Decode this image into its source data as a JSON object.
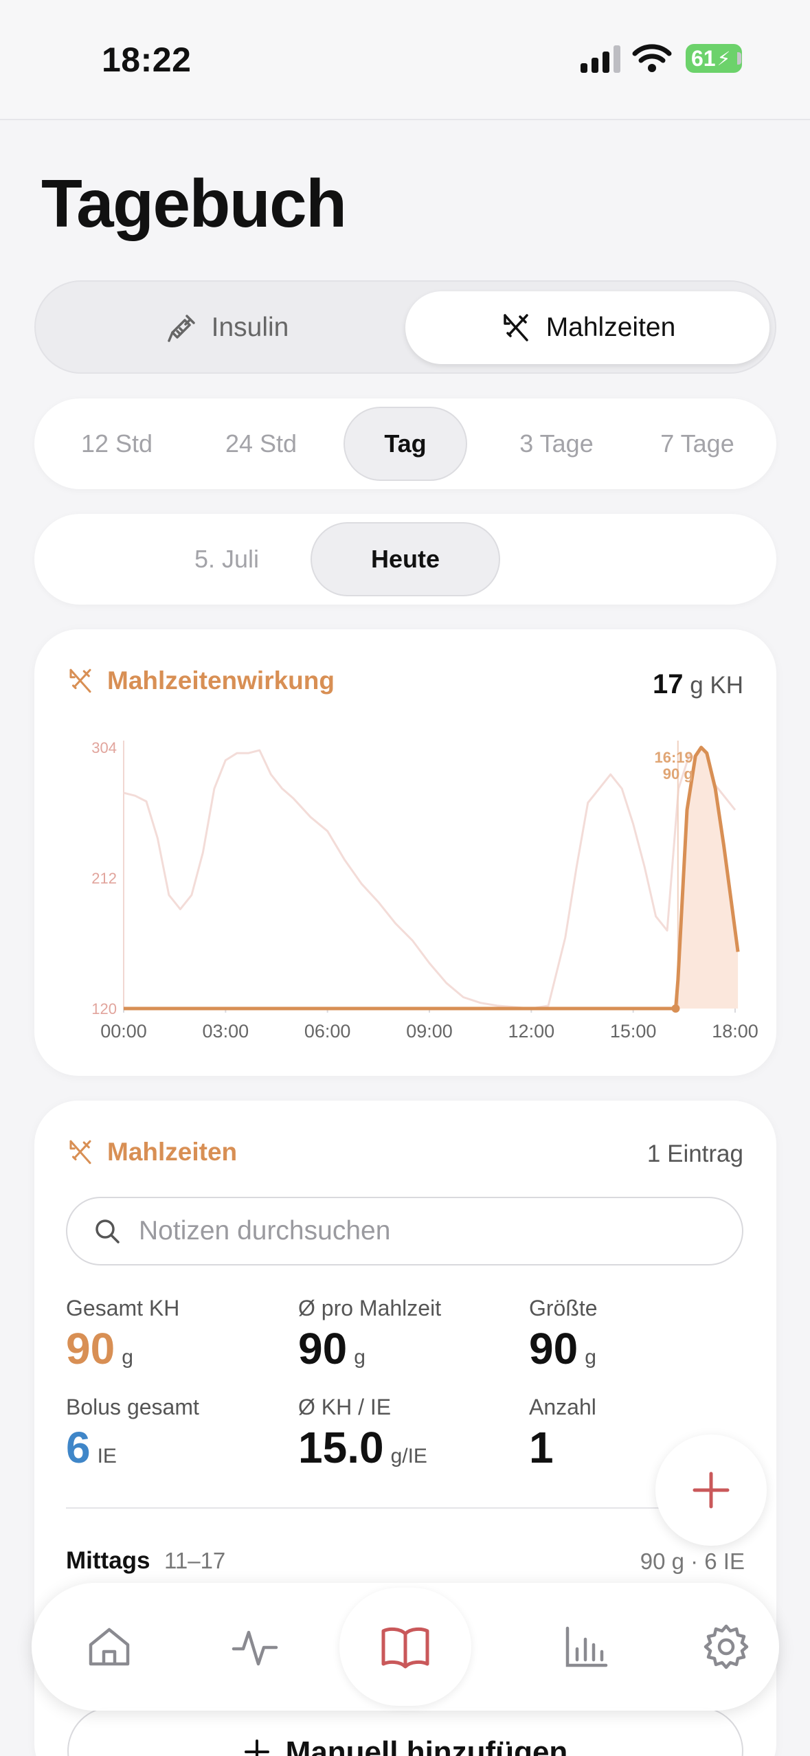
{
  "status": {
    "time": "18:22",
    "battery": "61"
  },
  "title": "Tagebuch",
  "main_tabs": [
    {
      "label": "Insulin",
      "icon": "syringe-icon",
      "active": false
    },
    {
      "label": "Mahlzeiten",
      "icon": "fork-knife-icon",
      "active": true
    }
  ],
  "range_options": [
    {
      "label": "12 Std",
      "active": false
    },
    {
      "label": "24 Std",
      "active": false
    },
    {
      "label": "Tag",
      "active": true
    },
    {
      "label": "3 Tage",
      "active": false
    },
    {
      "label": "7 Tage",
      "active": false
    }
  ],
  "day_options": [
    {
      "label": "5. Juli",
      "active": false
    },
    {
      "label": "Heute",
      "active": true
    }
  ],
  "effect_card": {
    "title": "Mahlzeitenwirkung",
    "value": "17",
    "unit": "g KH",
    "accent": "#d88f54"
  },
  "chart_data": {
    "type": "line",
    "x_ticks": [
      "00:00",
      "03:00",
      "06:00",
      "09:00",
      "12:00",
      "15:00",
      "18:00"
    ],
    "y_ticks": [
      "304",
      "212",
      "120"
    ],
    "ylim": [
      120,
      304
    ],
    "glucose_series": {
      "x": [
        "00:00",
        "00:20",
        "00:40",
        "01:00",
        "01:20",
        "01:40",
        "02:00",
        "02:20",
        "02:40",
        "03:00",
        "03:20",
        "03:40",
        "04:00",
        "04:20",
        "04:40",
        "05:00",
        "05:30",
        "06:00",
        "06:30",
        "07:00",
        "07:30",
        "08:00",
        "08:30",
        "09:00",
        "09:30",
        "10:00",
        "10:30",
        "11:00",
        "11:30",
        "12:00",
        "12:30",
        "13:00",
        "13:20",
        "13:40",
        "14:00",
        "14:20",
        "14:40",
        "15:00",
        "15:20",
        "15:40",
        "16:00",
        "16:20",
        "16:40",
        "17:00",
        "17:20",
        "17:40",
        "18:00"
      ],
      "y": [
        272,
        270,
        266,
        240,
        200,
        190,
        200,
        230,
        275,
        295,
        300,
        300,
        302,
        285,
        275,
        268,
        255,
        245,
        225,
        208,
        195,
        180,
        168,
        152,
        138,
        128,
        124,
        122,
        121,
        120,
        122,
        170,
        220,
        265,
        275,
        285,
        275,
        250,
        220,
        185,
        175,
        275,
        300,
        290,
        280,
        270,
        260
      ]
    },
    "meal_curve": {
      "x": [
        "00:00",
        "16:15",
        "16:19",
        "16:35",
        "16:50",
        "17:00",
        "17:10",
        "17:25",
        "17:40",
        "17:55",
        "18:05"
      ],
      "y": [
        120,
        120,
        140,
        260,
        298,
        304,
        300,
        275,
        235,
        190,
        160
      ]
    },
    "annotation": {
      "time": "16:19",
      "amount": "90 g"
    }
  },
  "meals_card": {
    "title": "Mahlzeiten",
    "entries": "1 Eintrag",
    "search_placeholder": "Notizen durchsuchen",
    "stats": [
      {
        "label": "Gesamt KH",
        "value": "90",
        "unit": "g",
        "color": "#d88f54"
      },
      {
        "label": "Ø pro Mahlzeit",
        "value": "90",
        "unit": "g",
        "color": "#111111"
      },
      {
        "label": "Größte",
        "value": "90",
        "unit": "g",
        "color": "#111111"
      },
      {
        "label": "Bolus gesamt",
        "value": "6",
        "unit": "IE",
        "color": "#3f86c8"
      },
      {
        "label": "Ø KH / IE",
        "value": "15.0",
        "unit": "g/IE",
        "color": "#111111"
      },
      {
        "label": "Anzahl",
        "value": "1",
        "unit": "",
        "color": "#111111"
      }
    ],
    "section": {
      "name": "Mittags",
      "range": "11–17",
      "summary": "90 g · 6 IE"
    }
  },
  "manual_add": "Manuell hinzufügen",
  "tabbar": [
    {
      "icon": "home-icon",
      "active": false
    },
    {
      "icon": "pulse-icon",
      "active": false
    },
    {
      "icon": "book-icon",
      "active": true
    },
    {
      "icon": "bar-chart-icon",
      "active": false
    },
    {
      "icon": "gear-icon",
      "active": false
    }
  ]
}
